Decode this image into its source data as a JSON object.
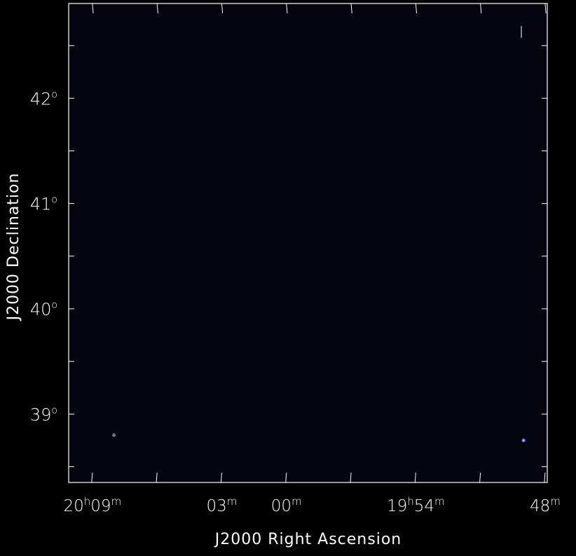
{
  "chart_data": {
    "type": "scatter",
    "xlabel": "J2000 Right Ascension",
    "ylabel": "J2000 Declination",
    "background_color": "#04040f",
    "frame_color": "#ffffff",
    "x_axis": {
      "unit": "RA (hours)",
      "range": [
        "20h10m06s",
        "19h47m54s"
      ],
      "labeled_ticks": [
        {
          "value": "20h09m",
          "main": "20",
          "unit1": "h",
          "sub": "09",
          "unit2": "m"
        },
        {
          "value": "20h03m",
          "main": "03",
          "unit1": "m"
        },
        {
          "value": "20h00m",
          "main": "00",
          "unit1": "m"
        },
        {
          "value": "19h54m",
          "main": "19",
          "unit1": "h",
          "sub": "54",
          "unit2": "m"
        },
        {
          "value": "19h48m",
          "main": "48",
          "unit1": "m"
        }
      ]
    },
    "y_axis": {
      "unit": "Dec (degrees)",
      "range": [
        38.35,
        42.9
      ],
      "labeled_ticks": [
        {
          "value": 39,
          "text": "39",
          "unit": "o"
        },
        {
          "value": 40,
          "text": "40",
          "unit": "o"
        },
        {
          "value": 41,
          "text": "41",
          "unit": "o"
        },
        {
          "value": 42,
          "text": "42",
          "unit": "o"
        }
      ],
      "minor_ticks": [
        38.5,
        39.5,
        40.5,
        41.5,
        42.5
      ]
    },
    "points": [
      {
        "ra": "20h08m",
        "dec": 38.8,
        "color": "#ffffff",
        "marker": "open-circle"
      },
      {
        "ra": "19h49m",
        "dec": 38.75,
        "color": "#5577ff",
        "marker": "filled-circle"
      }
    ],
    "grid": false,
    "legend": false
  }
}
